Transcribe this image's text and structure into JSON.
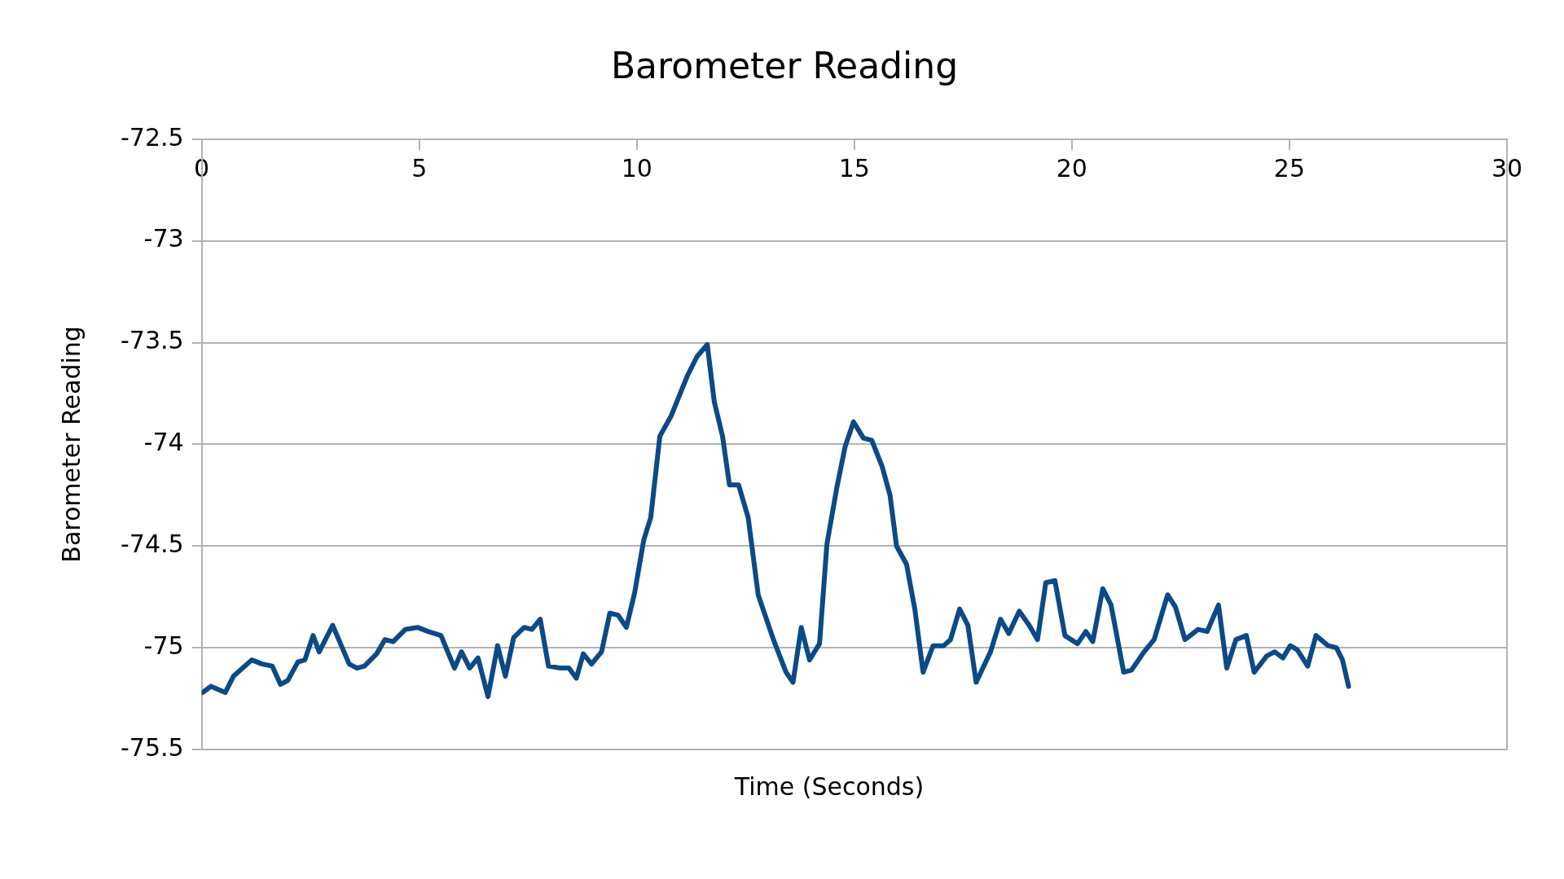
{
  "chart_data": {
    "type": "line",
    "title": "Barometer Reading",
    "xlabel": "Time (Seconds)",
    "ylabel": "Barometer Reading",
    "xlim": [
      0,
      30
    ],
    "xticks": [
      0,
      5,
      10,
      15,
      20,
      25,
      30
    ],
    "ylim": [
      -75.5,
      -72.5
    ],
    "yticks": [
      -75.5,
      -75,
      -74.5,
      -74,
      -73.5,
      -73,
      -72.5
    ],
    "grid": "y",
    "legend": false,
    "marker": "none",
    "line_style": "solid",
    "series": [
      {
        "color": "#0c4a87",
        "x": [
          0.02,
          0.21,
          0.54,
          0.73,
          1.15,
          1.39,
          1.62,
          1.81,
          1.98,
          2.21,
          2.37,
          2.56,
          2.7,
          3.01,
          3.39,
          3.57,
          3.74,
          4.02,
          4.21,
          4.4,
          4.68,
          4.96,
          5.2,
          5.5,
          5.81,
          5.97,
          6.16,
          6.35,
          6.58,
          6.8,
          6.98,
          7.17,
          7.41,
          7.59,
          7.78,
          7.97,
          8.25,
          8.44,
          8.61,
          8.77,
          8.96,
          9.19,
          9.38,
          9.57,
          9.76,
          9.95,
          10.16,
          10.32,
          10.53,
          10.79,
          11.17,
          11.38,
          11.62,
          11.78,
          11.97,
          12.13,
          12.34,
          12.56,
          12.79,
          13.14,
          13.43,
          13.59,
          13.78,
          13.97,
          14.2,
          14.37,
          14.6,
          14.79,
          14.98,
          15.21,
          15.4,
          15.64,
          15.82,
          15.97,
          16.2,
          16.39,
          16.58,
          16.81,
          17.05,
          17.21,
          17.42,
          17.61,
          17.8,
          18.13,
          18.36,
          18.55,
          18.79,
          19.02,
          19.21,
          19.4,
          19.61,
          19.84,
          20.13,
          20.32,
          20.48,
          20.71,
          20.9,
          21.19,
          21.37,
          21.66,
          21.89,
          22.2,
          22.38,
          22.6,
          22.9,
          23.11,
          23.37,
          23.56,
          23.77,
          24.01,
          24.19,
          24.48,
          24.66,
          24.85,
          25.02,
          25.18,
          25.42,
          25.61,
          25.89,
          26.08,
          26.22,
          26.36
        ],
        "values": [
          -75.22,
          -75.19,
          -75.22,
          -75.14,
          -75.06,
          -75.08,
          -75.09,
          -75.18,
          -75.16,
          -75.07,
          -75.06,
          -74.94,
          -75.02,
          -74.89,
          -75.08,
          -75.1,
          -75.09,
          -75.03,
          -74.96,
          -74.97,
          -74.91,
          -74.9,
          -74.92,
          -74.94,
          -75.1,
          -75.02,
          -75.1,
          -75.05,
          -75.24,
          -74.99,
          -75.14,
          -74.95,
          -74.9,
          -74.91,
          -74.86,
          -75.09,
          -75.1,
          -75.1,
          -75.15,
          -75.03,
          -75.08,
          -75.02,
          -74.83,
          -74.84,
          -74.9,
          -74.73,
          -74.47,
          -74.36,
          -73.96,
          -73.86,
          -73.66,
          -73.57,
          -73.51,
          -73.79,
          -73.96,
          -74.2,
          -74.2,
          -74.36,
          -74.74,
          -74.96,
          -75.12,
          -75.17,
          -74.9,
          -75.06,
          -74.98,
          -74.49,
          -74.21,
          -74.01,
          -73.89,
          -73.97,
          -73.98,
          -74.11,
          -74.25,
          -74.5,
          -74.59,
          -74.81,
          -75.12,
          -74.99,
          -74.99,
          -74.96,
          -74.81,
          -74.89,
          -75.17,
          -75.02,
          -74.86,
          -74.93,
          -74.82,
          -74.89,
          -74.96,
          -74.68,
          -74.67,
          -74.94,
          -74.98,
          -74.92,
          -74.97,
          -74.71,
          -74.79,
          -75.12,
          -75.11,
          -75.02,
          -74.96,
          -74.74,
          -74.8,
          -74.96,
          -74.91,
          -74.92,
          -74.79,
          -75.1,
          -74.96,
          -74.94,
          -75.12,
          -75.04,
          -75.02,
          -75.05,
          -74.99,
          -75.01,
          -75.09,
          -74.94,
          -74.99,
          -75.0,
          -75.06,
          -75.19
        ]
      }
    ]
  }
}
